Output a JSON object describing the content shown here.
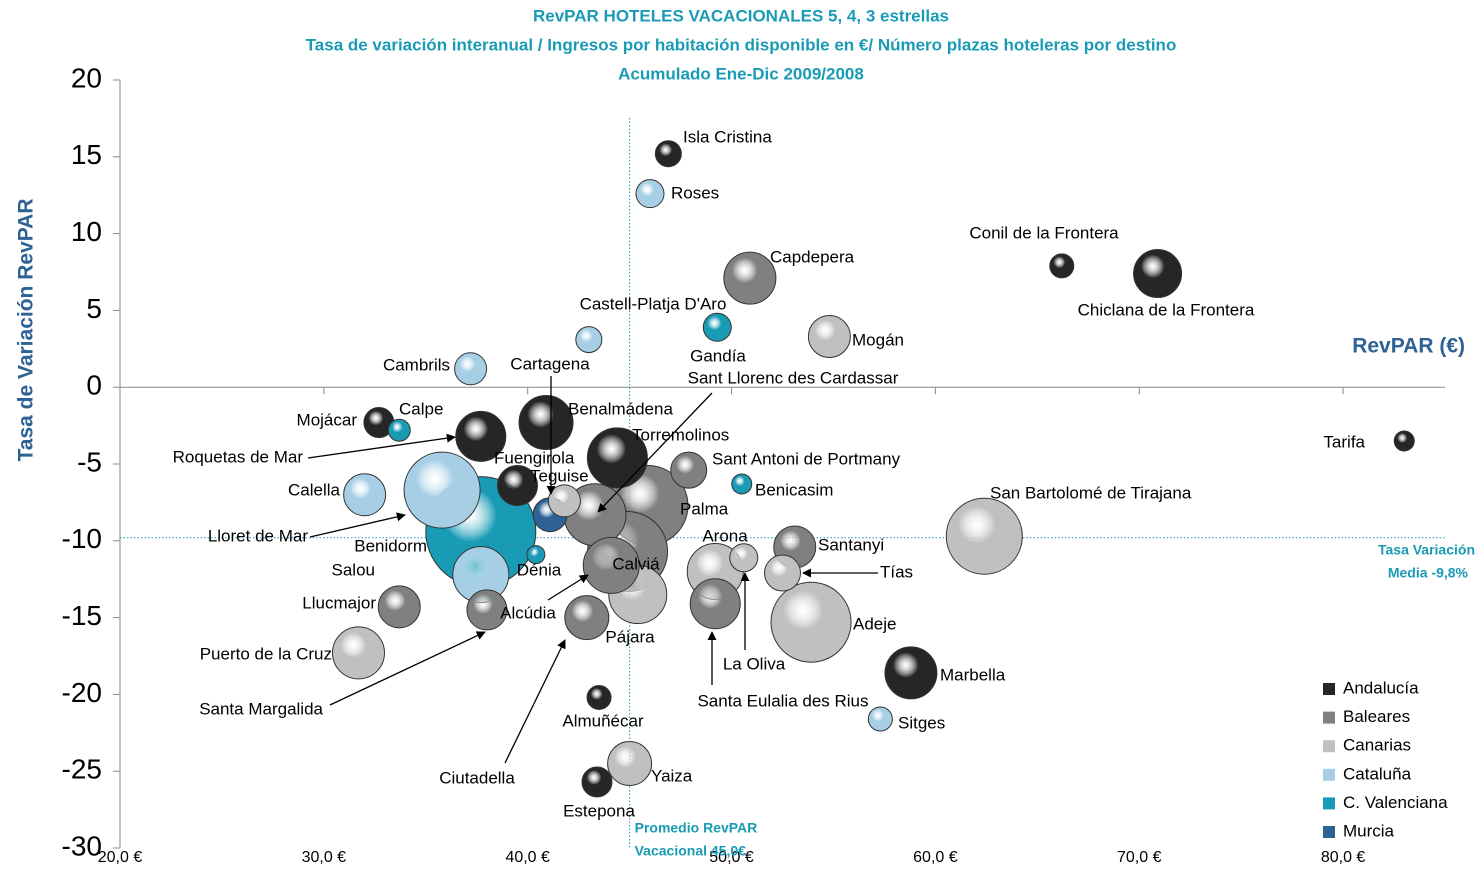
{
  "chart_data": {
    "type": "bubble",
    "title": [
      "RevPAR HOTELES VACACIONALES 5, 4, 3 estrellas",
      "Tasa de variación interanual / Ingresos por habitación disponible en €/ Número plazas hoteleras por destino",
      "Acumulado Ene-Dic 2009/2008"
    ],
    "x_label": "RevPAR (€)",
    "y_label": "Tasa de Variación RevPAR",
    "xlim": [
      20,
      85
    ],
    "ylim": [
      -30,
      20
    ],
    "xticks": [
      {
        "value": 20,
        "label": "20,0 €"
      },
      {
        "value": 30,
        "label": "30,0 €"
      },
      {
        "value": 40,
        "label": "40,0 €"
      },
      {
        "value": 50,
        "label": "50,0 €"
      },
      {
        "value": 60,
        "label": "60,0 €"
      },
      {
        "value": 70,
        "label": "70,0 €"
      },
      {
        "value": 80,
        "label": "80,0 €"
      }
    ],
    "yticks": [
      -30,
      -25,
      -20,
      -15,
      -10,
      -5,
      0,
      5,
      10,
      15,
      20
    ],
    "mean_x": {
      "value": 45.0,
      "label": [
        "Promedio RevPAR",
        "Vacacional 45,0€"
      ]
    },
    "mean_y": {
      "value": -9.8,
      "label": [
        "Tasa Variación",
        "Media  -9,8%"
      ]
    },
    "series": [
      {
        "name": "Andalucía",
        "color": "#262626",
        "labels": [
          "Isla Cristina",
          "Conil de la Frontera",
          "Chiclana de la Frontera",
          "Tarifa",
          "Mojácar",
          "Roquetas de Mar",
          "Benalmádena",
          "Torremolinos",
          "Fuengirola",
          "Marbella",
          "Almuñécar",
          "Estepona"
        ],
        "x": [
          46.9,
          66.2,
          70.9,
          83.0,
          32.7,
          37.7,
          40.9,
          44.4,
          39.5,
          58.8,
          43.5,
          43.4
        ],
        "values": [
          15.2,
          7.9,
          7.4,
          -3.5,
          -2.3,
          -3.2,
          -2.3,
          -4.6,
          -6.4,
          -18.6,
          -20.2,
          -25.7
        ],
        "sizes": [
          13,
          12,
          24,
          10,
          15,
          25,
          27,
          30,
          20,
          26,
          12,
          15
        ]
      },
      {
        "name": "Baleares",
        "color": "#808080",
        "labels": [
          "Capdepera",
          "Sant Antoni de Portmany",
          "Sant Llorenc des Cardassar",
          "Palma",
          "Calviá",
          "Alcúdia",
          "Santanyi",
          "Santa Eulalia des Rius",
          "Llucmajor",
          "Santa Margalida",
          "Ciutadella"
        ],
        "x": [
          50.9,
          47.9,
          43.3,
          45.9,
          44.9,
          44.1,
          53.1,
          49.2,
          33.7,
          38.0,
          42.9
        ],
        "values": [
          7.1,
          -5.4,
          -8.3,
          -7.7,
          -10.7,
          -11.6,
          -10.4,
          -14.1,
          -14.3,
          -14.5,
          -15.0
        ],
        "sizes": [
          26,
          18,
          31,
          40,
          40,
          28,
          21,
          25,
          21,
          20,
          22
        ]
      },
      {
        "name": "Canarias",
        "color": "#c0c0c0",
        "labels": [
          "Mogán",
          "Teguise",
          "Arona",
          "Tías",
          "La Oliva",
          "Adeje",
          "Pájara",
          "San Bartolomé de Tirajana",
          "Puerto de la Cruz",
          "Yaiza"
        ],
        "x": [
          54.8,
          41.8,
          49.2,
          52.5,
          50.6,
          53.9,
          45.4,
          62.4,
          31.7,
          45.0
        ],
        "values": [
          3.3,
          -7.4,
          -12.0,
          -12.1,
          -11.1,
          -15.3,
          -13.5,
          -9.7,
          -17.3,
          -24.5
        ],
        "sizes": [
          21,
          16,
          28,
          18,
          14,
          40,
          29,
          38,
          26,
          22
        ]
      },
      {
        "name": "Cataluña",
        "color": "#a6cfe6",
        "labels": [
          "Roses",
          "Castell-Platja D'Aro",
          "Cambrils",
          "Calella",
          "Lloret de Mar",
          "Salou",
          "Sitges"
        ],
        "x": [
          46.0,
          43.0,
          37.2,
          32.0,
          35.8,
          37.7,
          57.3
        ],
        "values": [
          12.6,
          3.1,
          1.2,
          -7.0,
          -6.7,
          -12.2,
          -21.6
        ],
        "sizes": [
          14,
          13,
          16,
          21,
          38,
          28,
          12
        ]
      },
      {
        "name": "C. Valenciana",
        "color": "#1a9bb5",
        "labels": [
          "Gandía",
          "Calpe",
          "Benicasim",
          "Benidorm",
          "Dénia"
        ],
        "x": [
          49.3,
          33.7,
          50.5,
          37.7,
          40.4
        ],
        "values": [
          3.9,
          -2.8,
          -6.3,
          -9.4,
          -10.9
        ],
        "sizes": [
          14,
          11,
          10,
          55,
          9
        ]
      },
      {
        "name": "Murcia",
        "color": "#2e6294",
        "labels": [
          "Cartagena"
        ],
        "x": [
          41.1
        ],
        "values": [
          -8.3
        ],
        "sizes": [
          17
        ]
      }
    ]
  }
}
